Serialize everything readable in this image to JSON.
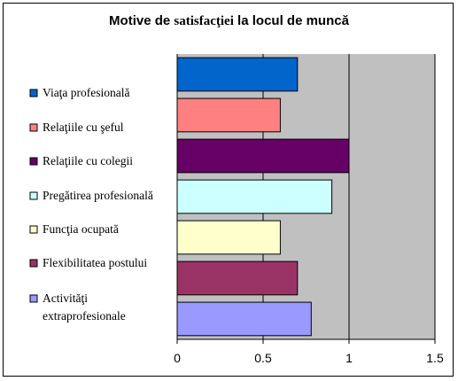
{
  "chart_data": {
    "type": "bar",
    "orientation": "horizontal",
    "title_parts": [
      "Motive de ",
      "satisfacţiei",
      " la locul de muncă"
    ],
    "categories": [
      "Viaţa profesională",
      "Relaţiile cu şeful",
      "Relaţiile cu colegii",
      "Pregătirea profesională",
      "Funcţia ocupată",
      "Flexibilitatea postului",
      "Activităţi extraprofesionale"
    ],
    "category_lines": [
      [
        "Viaţa profesională"
      ],
      [
        "Relaţiile cu şeful"
      ],
      [
        "Relaţiile cu colegii"
      ],
      [
        "Pregătirea profesională"
      ],
      [
        "Funcţia ocupată"
      ],
      [
        "Flexibilitatea postului"
      ],
      [
        "Activităţi",
        "extraprofesionale"
      ]
    ],
    "values": [
      0.7,
      0.6,
      1.0,
      0.9,
      0.6,
      0.7,
      0.78
    ],
    "colors": [
      "#0066CC",
      "#FF8080",
      "#660066",
      "#CCFFFF",
      "#FFFFCC",
      "#993366",
      "#9999FF"
    ],
    "xlim": [
      0,
      1.5
    ],
    "xticks": [
      0,
      0.5,
      1,
      1.5
    ],
    "xtick_labels": [
      "0",
      "0.5",
      "1",
      "1.5"
    ],
    "plot_background": "#C0C0C0",
    "gridlines": "vertical",
    "legend": "left"
  }
}
